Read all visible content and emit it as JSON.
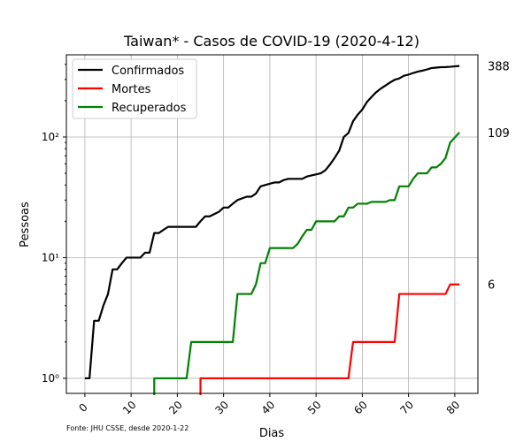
{
  "chart_data": {
    "type": "line",
    "title": "Taiwan* - Casos de COVID-19 (2020-4-12)",
    "xlabel": "Dias",
    "ylabel": "Pessoas",
    "y_scale": "log",
    "xlim": [
      -4,
      85
    ],
    "ylim": [
      0.75,
      480
    ],
    "x_ticks": [
      0,
      10,
      20,
      30,
      40,
      50,
      60,
      70,
      80
    ],
    "x_tick_labels": [
      "0",
      "10",
      "20",
      "30",
      "40",
      "50",
      "60",
      "70",
      "80"
    ],
    "y_ticks": [
      1,
      10,
      100
    ],
    "y_tick_labels": [
      "10⁰",
      "10¹",
      "10²"
    ],
    "grid": true,
    "legend_position": "top-left",
    "source_note": "Fonte: JHU CSSE, desde 2020-1-22",
    "series": [
      {
        "name": "Confirmados",
        "color": "#000000",
        "end_label": "388",
        "x": [
          0,
          1,
          2,
          3,
          4,
          5,
          6,
          7,
          8,
          9,
          10,
          11,
          12,
          13,
          14,
          15,
          16,
          17,
          18,
          19,
          20,
          21,
          22,
          23,
          24,
          25,
          26,
          27,
          28,
          29,
          30,
          31,
          32,
          33,
          34,
          35,
          36,
          37,
          38,
          39,
          40,
          41,
          42,
          43,
          44,
          45,
          46,
          47,
          48,
          49,
          50,
          51,
          52,
          53,
          54,
          55,
          56,
          57,
          58,
          59,
          60,
          61,
          62,
          63,
          64,
          65,
          66,
          67,
          68,
          69,
          70,
          71,
          72,
          73,
          74,
          75,
          76,
          77,
          78,
          79,
          80,
          81
        ],
        "y": [
          1,
          1,
          3,
          3,
          4,
          5,
          8,
          8,
          9,
          10,
          10,
          10,
          10,
          11,
          11,
          16,
          16,
          17,
          18,
          18,
          18,
          18,
          18,
          18,
          18,
          20,
          22,
          22,
          23,
          24,
          26,
          26,
          28,
          30,
          31,
          32,
          32,
          34,
          39,
          40,
          41,
          42,
          42,
          44,
          45,
          45,
          45,
          45,
          47,
          48,
          49,
          50,
          53,
          59,
          67,
          77,
          100,
          108,
          135,
          153,
          169,
          195,
          215,
          235,
          252,
          267,
          283,
          298,
          306,
          322,
          329,
          339,
          348,
          355,
          363,
          373,
          376,
          379,
          380,
          382,
          385,
          388
        ]
      },
      {
        "name": "Mortes",
        "color": "#ff0000",
        "end_label": "6",
        "x": [
          25,
          26,
          27,
          28,
          29,
          30,
          31,
          32,
          33,
          34,
          35,
          36,
          37,
          38,
          39,
          40,
          41,
          42,
          43,
          44,
          45,
          46,
          47,
          48,
          49,
          50,
          51,
          52,
          53,
          54,
          55,
          56,
          57,
          58,
          59,
          60,
          61,
          62,
          63,
          64,
          65,
          66,
          67,
          68,
          69,
          70,
          71,
          72,
          73,
          74,
          75,
          76,
          77,
          78,
          79,
          80,
          81
        ],
        "y": [
          1,
          1,
          1,
          1,
          1,
          1,
          1,
          1,
          1,
          1,
          1,
          1,
          1,
          1,
          1,
          1,
          1,
          1,
          1,
          1,
          1,
          1,
          1,
          1,
          1,
          1,
          1,
          1,
          1,
          1,
          1,
          1,
          1,
          2,
          2,
          2,
          2,
          2,
          2,
          2,
          2,
          2,
          2,
          5,
          5,
          5,
          5,
          5,
          5,
          5,
          5,
          5,
          5,
          5,
          6,
          6,
          6
        ]
      },
      {
        "name": "Recuperados",
        "color": "#008000",
        "end_label": "109",
        "x": [
          15,
          16,
          17,
          18,
          19,
          20,
          21,
          22,
          23,
          24,
          25,
          26,
          27,
          28,
          29,
          30,
          31,
          32,
          33,
          34,
          35,
          36,
          37,
          38,
          39,
          40,
          41,
          42,
          43,
          44,
          45,
          46,
          47,
          48,
          49,
          50,
          51,
          52,
          53,
          54,
          55,
          56,
          57,
          58,
          59,
          60,
          61,
          62,
          63,
          64,
          65,
          66,
          67,
          68,
          69,
          70,
          71,
          72,
          73,
          74,
          75,
          76,
          77,
          78,
          79,
          80,
          81
        ],
        "y": [
          1,
          1,
          1,
          1,
          1,
          1,
          1,
          1,
          2,
          2,
          2,
          2,
          2,
          2,
          2,
          2,
          2,
          2,
          5,
          5,
          5,
          5,
          6,
          9,
          9,
          12,
          12,
          12,
          12,
          12,
          12,
          13,
          15,
          17,
          17,
          20,
          20,
          20,
          20,
          20,
          22,
          22,
          26,
          26,
          28,
          28,
          28,
          29,
          29,
          29,
          29,
          30,
          30,
          39,
          39,
          39,
          45,
          50,
          50,
          50,
          56,
          56,
          60,
          67,
          90,
          99,
          109
        ]
      }
    ]
  }
}
